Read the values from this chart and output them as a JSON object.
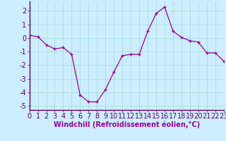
{
  "x": [
    0,
    1,
    2,
    3,
    4,
    5,
    6,
    7,
    8,
    9,
    10,
    11,
    12,
    13,
    14,
    15,
    16,
    17,
    18,
    19,
    20,
    21,
    22,
    23
  ],
  "y": [
    0.2,
    0.1,
    -0.5,
    -0.8,
    -0.7,
    -1.2,
    -4.2,
    -4.7,
    -4.7,
    -3.8,
    -2.5,
    -1.3,
    -1.2,
    -1.2,
    0.5,
    1.8,
    2.3,
    0.5,
    0.05,
    -0.2,
    -0.3,
    -1.1,
    -1.1,
    -1.7
  ],
  "xlabel": "Windchill (Refroidissement éolien,°C)",
  "xlim": [
    0,
    23
  ],
  "ylim": [
    -5.3,
    2.7
  ],
  "yticks": [
    -5,
    -4,
    -3,
    -2,
    -1,
    0,
    1,
    2
  ],
  "xticks": [
    0,
    1,
    2,
    3,
    4,
    5,
    6,
    7,
    8,
    9,
    10,
    11,
    12,
    13,
    14,
    15,
    16,
    17,
    18,
    19,
    20,
    21,
    22,
    23
  ],
  "line_color": "#990099",
  "marker": "+",
  "bg_color": "#cceeff",
  "grid_color": "#aadddd",
  "xlabel_color": "#990099",
  "xlabel_fontsize": 7,
  "tick_fontsize": 7,
  "axis_color": "#660066"
}
